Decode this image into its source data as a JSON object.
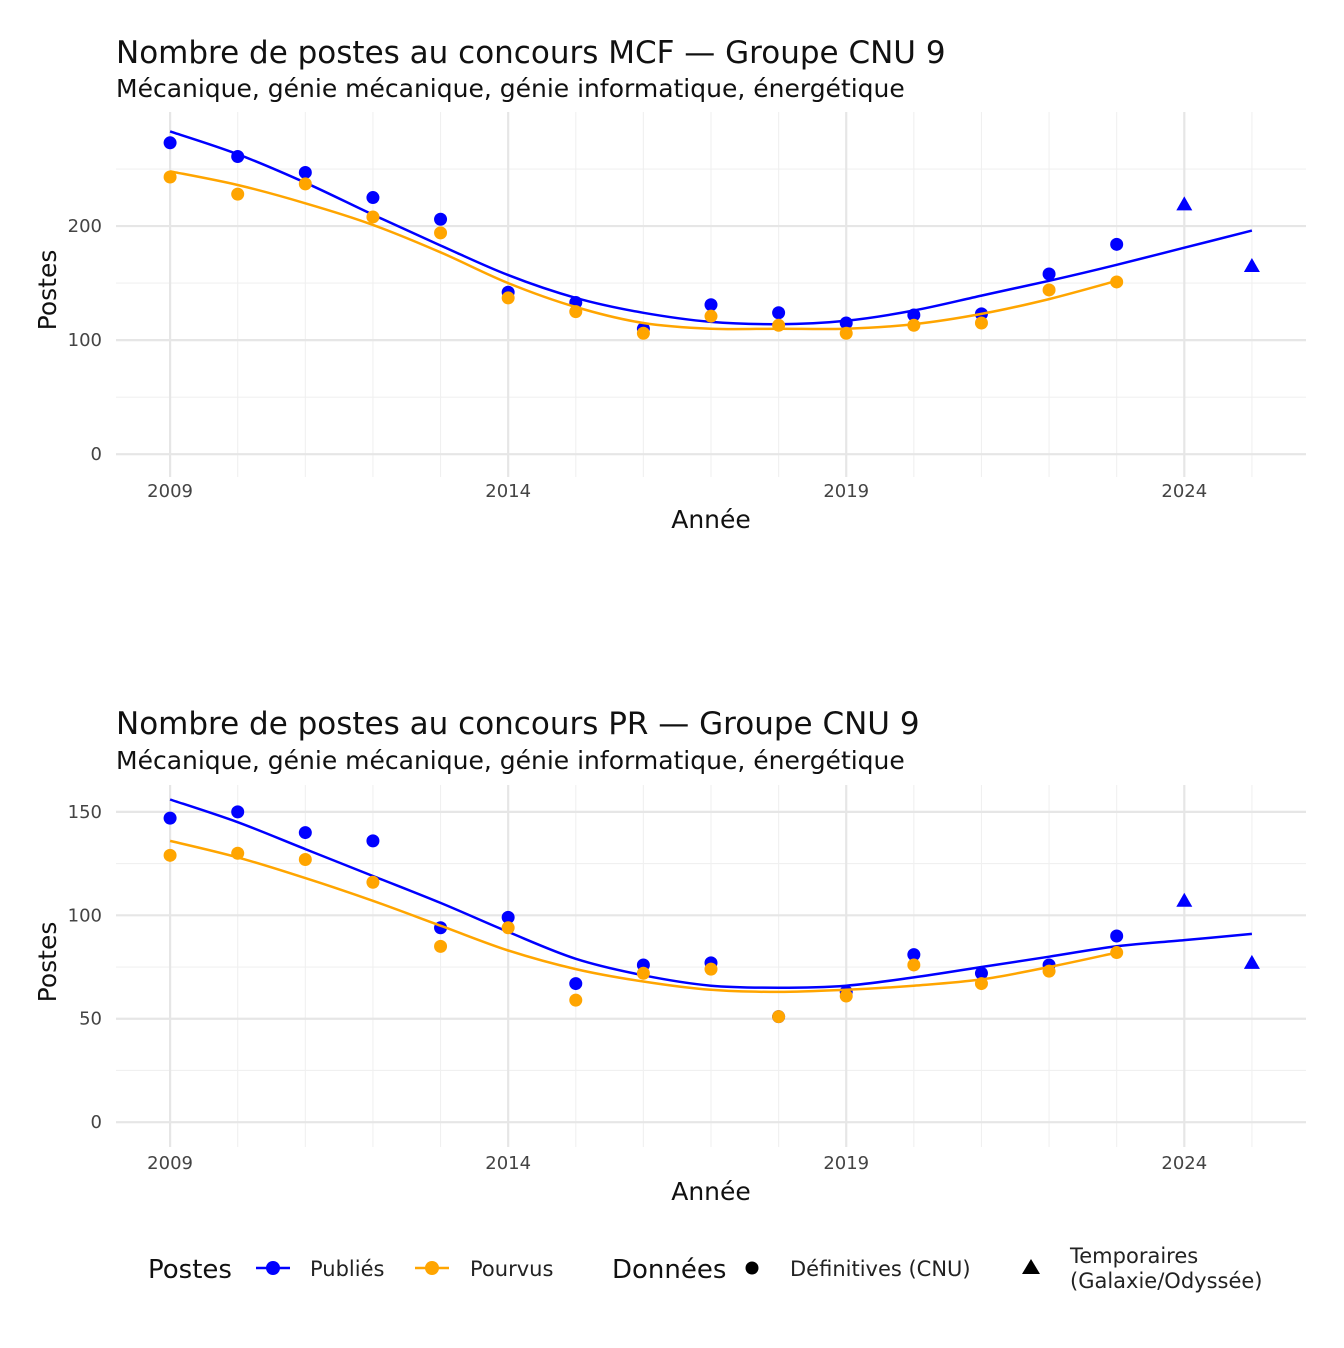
{
  "chart_data": [
    {
      "type": "scatter",
      "title": "Nombre de postes au concours MCF —  Groupe CNU 9",
      "subtitle": "Mécanique, génie mécanique, génie informatique, énergétique",
      "xlabel": "Année",
      "ylabel": "Postes",
      "xlim": [
        2008.2,
        2025.8
      ],
      "ylim": [
        -20,
        300
      ],
      "x_ticks": [
        2009,
        2014,
        2019,
        2024
      ],
      "x_tick_labels": [
        "2009",
        "2014",
        "2019",
        "2024"
      ],
      "y_ticks": [
        0,
        100,
        200
      ],
      "y_tick_labels": [
        "0",
        "100",
        "200"
      ],
      "series": [
        {
          "name": "Publiés",
          "color": "#0000FF",
          "points_definitive": [
            {
              "x": 2009,
              "y": 273
            },
            {
              "x": 2010,
              "y": 261
            },
            {
              "x": 2011,
              "y": 247
            },
            {
              "x": 2012,
              "y": 225
            },
            {
              "x": 2013,
              "y": 206
            },
            {
              "x": 2014,
              "y": 142
            },
            {
              "x": 2015,
              "y": 133
            },
            {
              "x": 2016,
              "y": 110
            },
            {
              "x": 2017,
              "y": 131
            },
            {
              "x": 2018,
              "y": 124
            },
            {
              "x": 2019,
              "y": 115
            },
            {
              "x": 2020,
              "y": 122
            },
            {
              "x": 2021,
              "y": 123
            },
            {
              "x": 2022,
              "y": 158
            },
            {
              "x": 2023,
              "y": 184
            }
          ],
          "points_temporary": [
            {
              "x": 2024,
              "y": 219
            },
            {
              "x": 2025,
              "y": 165
            }
          ],
          "smooth": [
            {
              "x": 2009,
              "y": 283
            },
            {
              "x": 2010,
              "y": 263
            },
            {
              "x": 2011,
              "y": 238
            },
            {
              "x": 2012,
              "y": 210
            },
            {
              "x": 2013,
              "y": 183
            },
            {
              "x": 2014,
              "y": 157
            },
            {
              "x": 2015,
              "y": 137
            },
            {
              "x": 2016,
              "y": 124
            },
            {
              "x": 2017,
              "y": 116
            },
            {
              "x": 2018,
              "y": 114
            },
            {
              "x": 2019,
              "y": 117
            },
            {
              "x": 2020,
              "y": 126
            },
            {
              "x": 2021,
              "y": 139
            },
            {
              "x": 2022,
              "y": 152
            },
            {
              "x": 2023,
              "y": 166
            },
            {
              "x": 2024,
              "y": 181
            },
            {
              "x": 2025,
              "y": 196
            }
          ]
        },
        {
          "name": "Pourvus",
          "color": "#FFA500",
          "points_definitive": [
            {
              "x": 2009,
              "y": 243
            },
            {
              "x": 2010,
              "y": 228
            },
            {
              "x": 2011,
              "y": 237
            },
            {
              "x": 2012,
              "y": 208
            },
            {
              "x": 2013,
              "y": 194
            },
            {
              "x": 2014,
              "y": 137
            },
            {
              "x": 2015,
              "y": 125
            },
            {
              "x": 2016,
              "y": 106
            },
            {
              "x": 2017,
              "y": 121
            },
            {
              "x": 2018,
              "y": 113
            },
            {
              "x": 2019,
              "y": 106
            },
            {
              "x": 2020,
              "y": 113
            },
            {
              "x": 2021,
              "y": 115
            },
            {
              "x": 2022,
              "y": 144
            },
            {
              "x": 2023,
              "y": 151
            }
          ],
          "points_temporary": [],
          "smooth": [
            {
              "x": 2009,
              "y": 248
            },
            {
              "x": 2010,
              "y": 236
            },
            {
              "x": 2011,
              "y": 220
            },
            {
              "x": 2012,
              "y": 201
            },
            {
              "x": 2013,
              "y": 177
            },
            {
              "x": 2014,
              "y": 150
            },
            {
              "x": 2015,
              "y": 129
            },
            {
              "x": 2016,
              "y": 115
            },
            {
              "x": 2017,
              "y": 110
            },
            {
              "x": 2018,
              "y": 110
            },
            {
              "x": 2019,
              "y": 110
            },
            {
              "x": 2020,
              "y": 114
            },
            {
              "x": 2021,
              "y": 123
            },
            {
              "x": 2022,
              "y": 136
            },
            {
              "x": 2023,
              "y": 152
            }
          ]
        }
      ]
    },
    {
      "type": "scatter",
      "title": "Nombre de postes au concours PR —  Groupe CNU 9",
      "subtitle": "Mécanique, génie mécanique, génie informatique, énergétique",
      "xlabel": "Année",
      "ylabel": "Postes",
      "xlim": [
        2008.2,
        2025.8
      ],
      "ylim": [
        -12,
        163
      ],
      "x_ticks": [
        2009,
        2014,
        2019,
        2024
      ],
      "x_tick_labels": [
        "2009",
        "2014",
        "2019",
        "2024"
      ],
      "y_ticks": [
        0,
        50,
        100,
        150
      ],
      "y_tick_labels": [
        "0",
        "50",
        "100",
        "150"
      ],
      "series": [
        {
          "name": "Publiés",
          "color": "#0000FF",
          "points_definitive": [
            {
              "x": 2009,
              "y": 147
            },
            {
              "x": 2010,
              "y": 150
            },
            {
              "x": 2011,
              "y": 140
            },
            {
              "x": 2012,
              "y": 136
            },
            {
              "x": 2013,
              "y": 94
            },
            {
              "x": 2014,
              "y": 99
            },
            {
              "x": 2015,
              "y": 67
            },
            {
              "x": 2016,
              "y": 76
            },
            {
              "x": 2017,
              "y": 77
            },
            {
              "x": 2018,
              "y": 51
            },
            {
              "x": 2019,
              "y": 63
            },
            {
              "x": 2020,
              "y": 81
            },
            {
              "x": 2021,
              "y": 72
            },
            {
              "x": 2022,
              "y": 76
            },
            {
              "x": 2023,
              "y": 90
            }
          ],
          "points_temporary": [
            {
              "x": 2024,
              "y": 107
            },
            {
              "x": 2025,
              "y": 77
            }
          ],
          "smooth": [
            {
              "x": 2009,
              "y": 156
            },
            {
              "x": 2010,
              "y": 145
            },
            {
              "x": 2011,
              "y": 132
            },
            {
              "x": 2012,
              "y": 119
            },
            {
              "x": 2013,
              "y": 106
            },
            {
              "x": 2014,
              "y": 92
            },
            {
              "x": 2015,
              "y": 79
            },
            {
              "x": 2016,
              "y": 71
            },
            {
              "x": 2017,
              "y": 66
            },
            {
              "x": 2018,
              "y": 65
            },
            {
              "x": 2019,
              "y": 66
            },
            {
              "x": 2020,
              "y": 70
            },
            {
              "x": 2021,
              "y": 75
            },
            {
              "x": 2022,
              "y": 80
            },
            {
              "x": 2023,
              "y": 85
            },
            {
              "x": 2024,
              "y": 88
            },
            {
              "x": 2025,
              "y": 91
            }
          ]
        },
        {
          "name": "Pourvus",
          "color": "#FFA500",
          "points_definitive": [
            {
              "x": 2009,
              "y": 129
            },
            {
              "x": 2010,
              "y": 130
            },
            {
              "x": 2011,
              "y": 127
            },
            {
              "x": 2012,
              "y": 116
            },
            {
              "x": 2013,
              "y": 85
            },
            {
              "x": 2014,
              "y": 94
            },
            {
              "x": 2015,
              "y": 59
            },
            {
              "x": 2016,
              "y": 72
            },
            {
              "x": 2017,
              "y": 74
            },
            {
              "x": 2018,
              "y": 51
            },
            {
              "x": 2019,
              "y": 61
            },
            {
              "x": 2020,
              "y": 76
            },
            {
              "x": 2021,
              "y": 67
            },
            {
              "x": 2022,
              "y": 73
            },
            {
              "x": 2023,
              "y": 82
            }
          ],
          "points_temporary": [],
          "smooth": [
            {
              "x": 2009,
              "y": 136
            },
            {
              "x": 2010,
              "y": 128
            },
            {
              "x": 2011,
              "y": 118
            },
            {
              "x": 2012,
              "y": 107
            },
            {
              "x": 2013,
              "y": 95
            },
            {
              "x": 2014,
              "y": 83
            },
            {
              "x": 2015,
              "y": 74
            },
            {
              "x": 2016,
              "y": 68
            },
            {
              "x": 2017,
              "y": 64
            },
            {
              "x": 2018,
              "y": 63
            },
            {
              "x": 2019,
              "y": 64
            },
            {
              "x": 2020,
              "y": 66
            },
            {
              "x": 2021,
              "y": 69
            },
            {
              "x": 2022,
              "y": 75
            },
            {
              "x": 2023,
              "y": 82
            }
          ]
        }
      ]
    }
  ],
  "legend": {
    "postes_title": "Postes",
    "postes_items": [
      {
        "label": "Publiés",
        "color": "#0000FF"
      },
      {
        "label": "Pourvus",
        "color": "#FFA500"
      }
    ],
    "donnees_title": "Données",
    "donnees_items": [
      {
        "label": "Définitives (CNU)",
        "shape": "circle"
      },
      {
        "label_line1": "Temporaires",
        "label_line2": "(Galaxie/Odyssée)",
        "shape": "triangle"
      }
    ]
  }
}
